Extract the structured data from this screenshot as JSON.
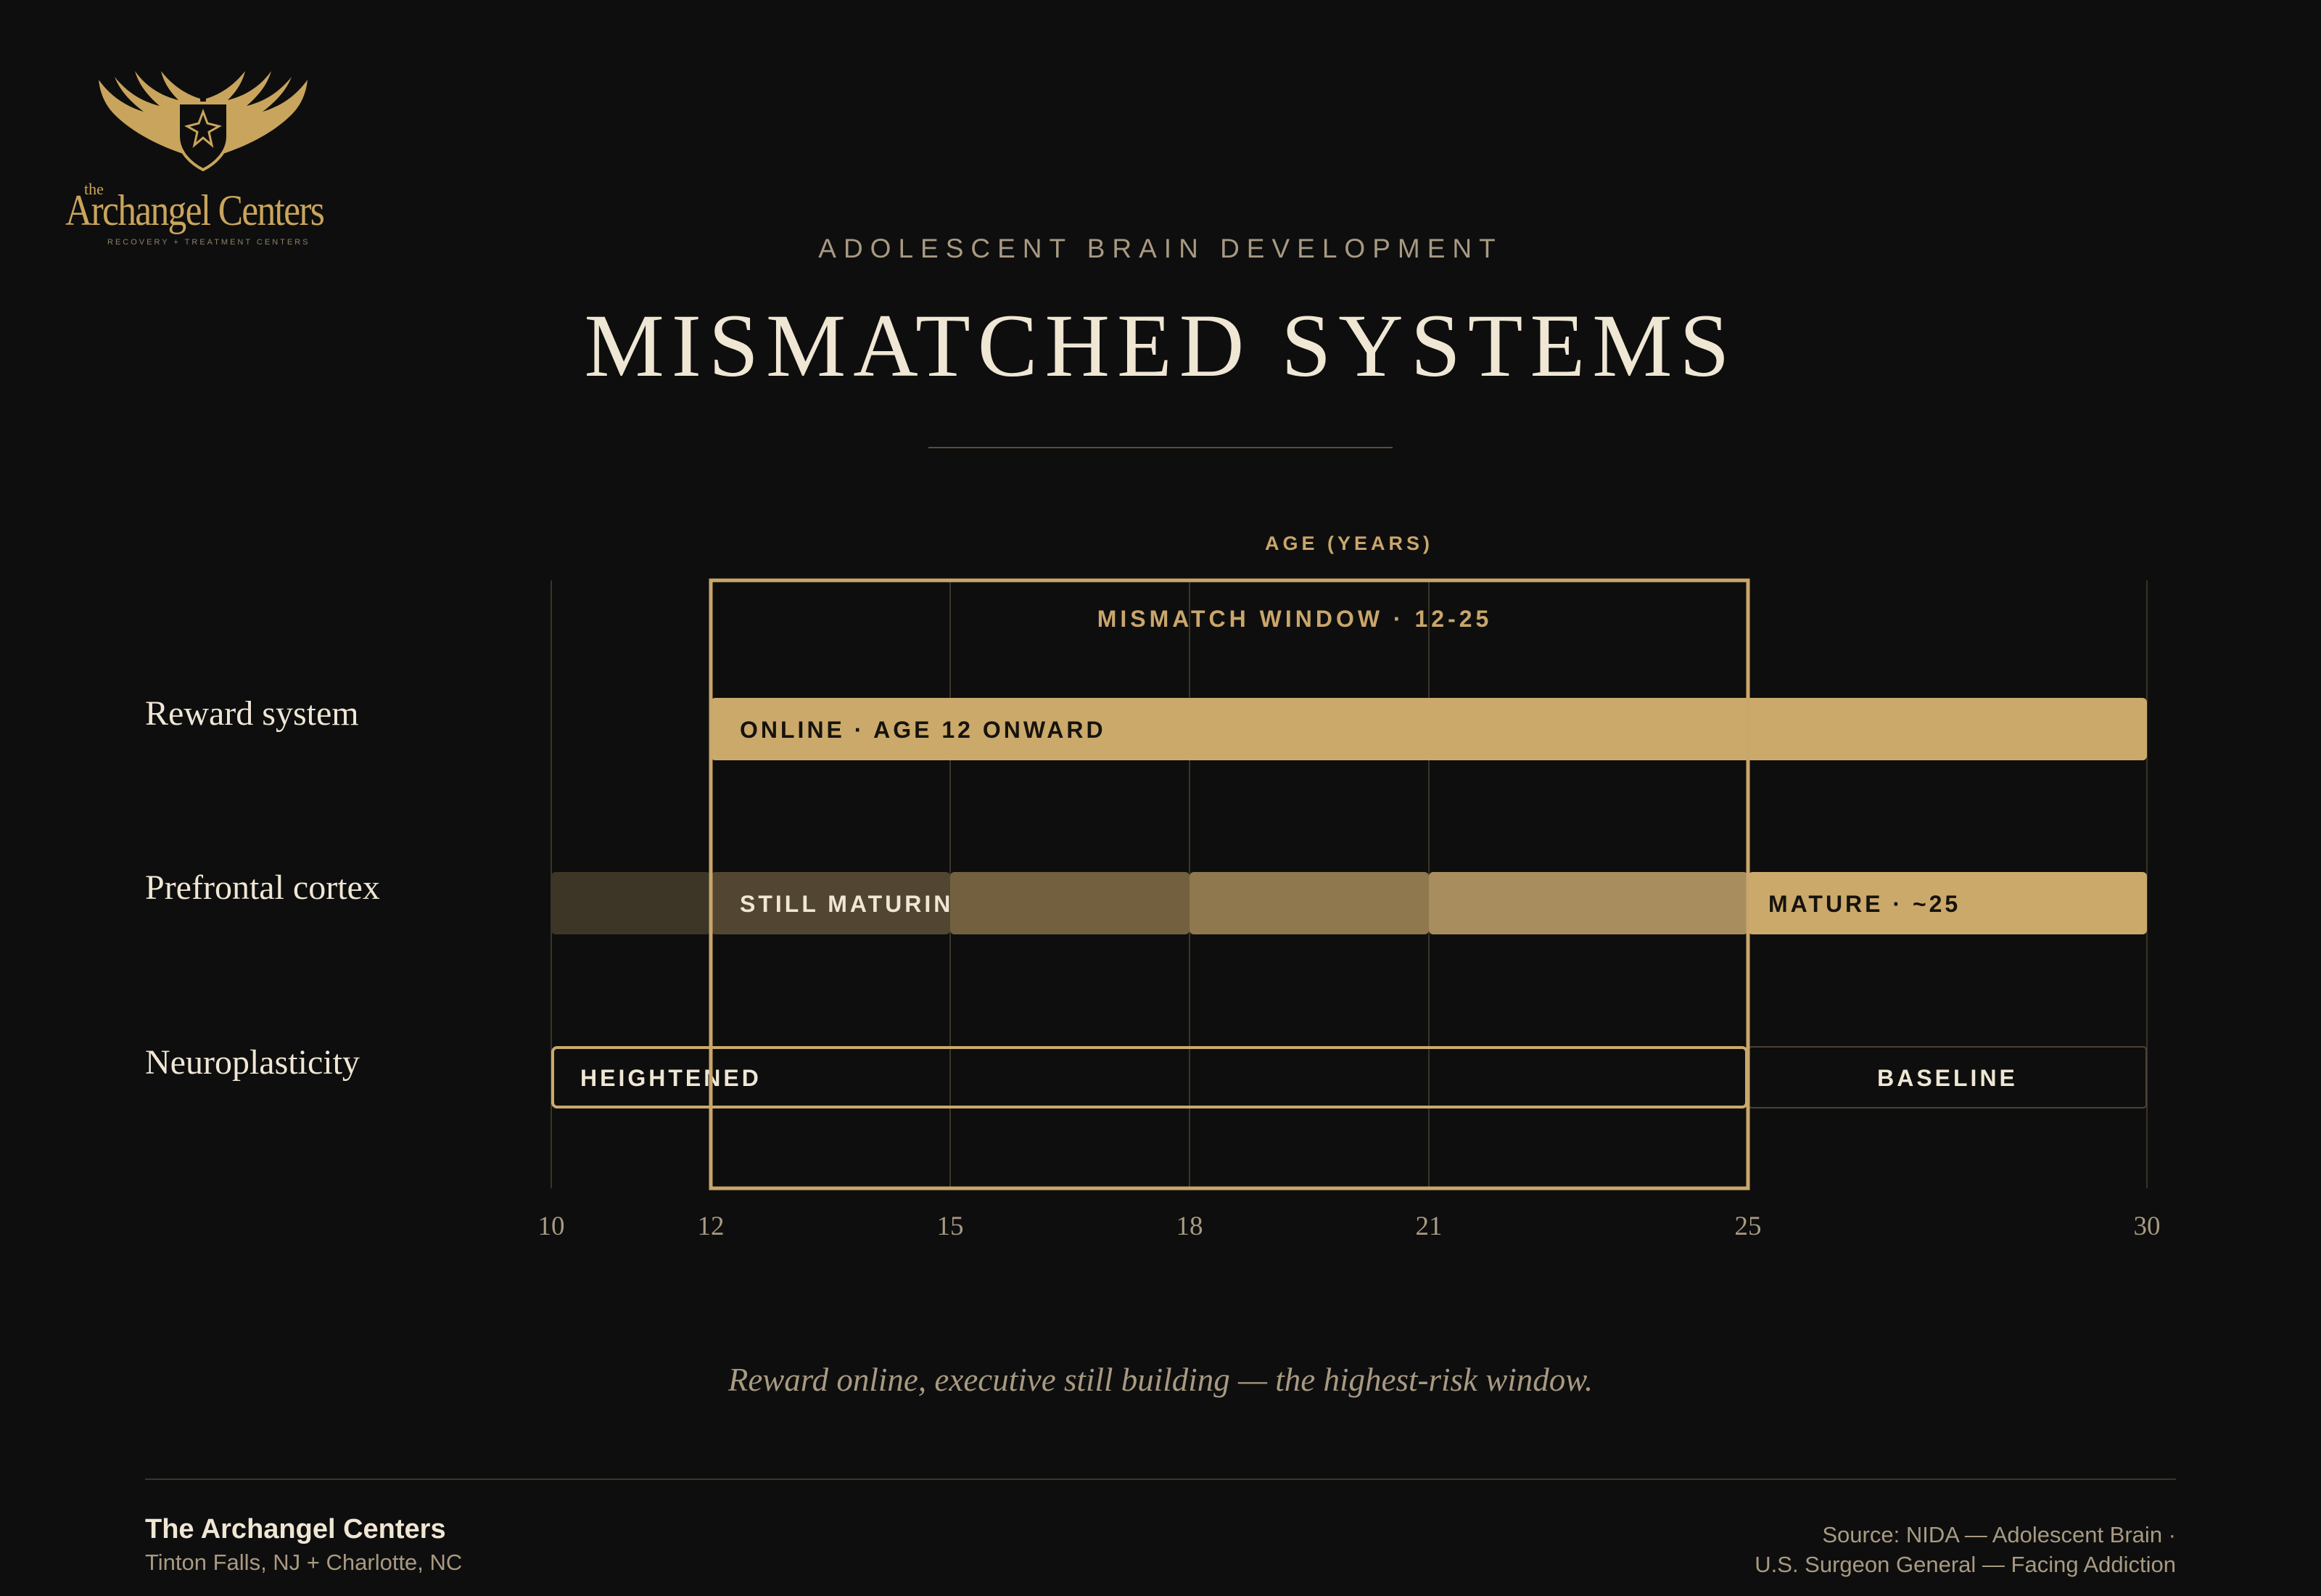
{
  "brand": {
    "logo_the": "the",
    "logo_name": "Archangel Centers",
    "logo_tagline": "RECOVERY + TREATMENT CENTERS",
    "gold": "#c9a45c"
  },
  "header": {
    "kicker": "ADOLESCENT BRAIN DEVELOPMENT",
    "title": "MISMATCHED SYSTEMS"
  },
  "chart_data": {
    "type": "timeline",
    "xlabel": "AGE (YEARS)",
    "xlim": [
      10,
      30
    ],
    "ticks": [
      10,
      12,
      15,
      18,
      21,
      25,
      30
    ],
    "grid": true,
    "window": {
      "label": "MISMATCH WINDOW · 12-25",
      "start": 12,
      "end": 25
    },
    "rows": [
      {
        "label": "Reward system",
        "segments": [
          {
            "start": 12,
            "end": 30,
            "label": "ONLINE · AGE 12 ONWARD",
            "style": "solid",
            "color": "#cba96b"
          }
        ]
      },
      {
        "label": "Prefrontal cortex",
        "segments": [
          {
            "start": 10,
            "end": 12,
            "label": "",
            "style": "solid",
            "color": "#3d3526"
          },
          {
            "start": 12,
            "end": 15,
            "label": "STILL MATURING",
            "style": "solid",
            "color": "#524532"
          },
          {
            "start": 15,
            "end": 18,
            "label": "",
            "style": "solid",
            "color": "#72603f"
          },
          {
            "start": 18,
            "end": 21,
            "label": "",
            "style": "solid",
            "color": "#8f784e"
          },
          {
            "start": 21,
            "end": 25,
            "label": "",
            "style": "solid",
            "color": "#a88e5e"
          },
          {
            "start": 25,
            "end": 30,
            "label": "MATURE · ~25",
            "style": "solid",
            "color": "#cba96b"
          }
        ]
      },
      {
        "label": "Neuroplasticity",
        "segments": [
          {
            "start": 10,
            "end": 25,
            "label": "HEIGHTENED",
            "style": "outline-strong",
            "color": "#cba96b"
          },
          {
            "start": 25,
            "end": 30,
            "label": "BASELINE",
            "style": "outline-faint",
            "color": "#4a4233"
          }
        ]
      }
    ]
  },
  "caption": "Reward online, executive still building — the highest-risk window.",
  "footer": {
    "org": "The Archangel Centers",
    "locations": "Tinton Falls, NJ + Charlotte, NC",
    "source_line1": "Source: NIDA — Adolescent Brain ·",
    "source_line2": "U.S. Surgeon General — Facing Addiction"
  }
}
